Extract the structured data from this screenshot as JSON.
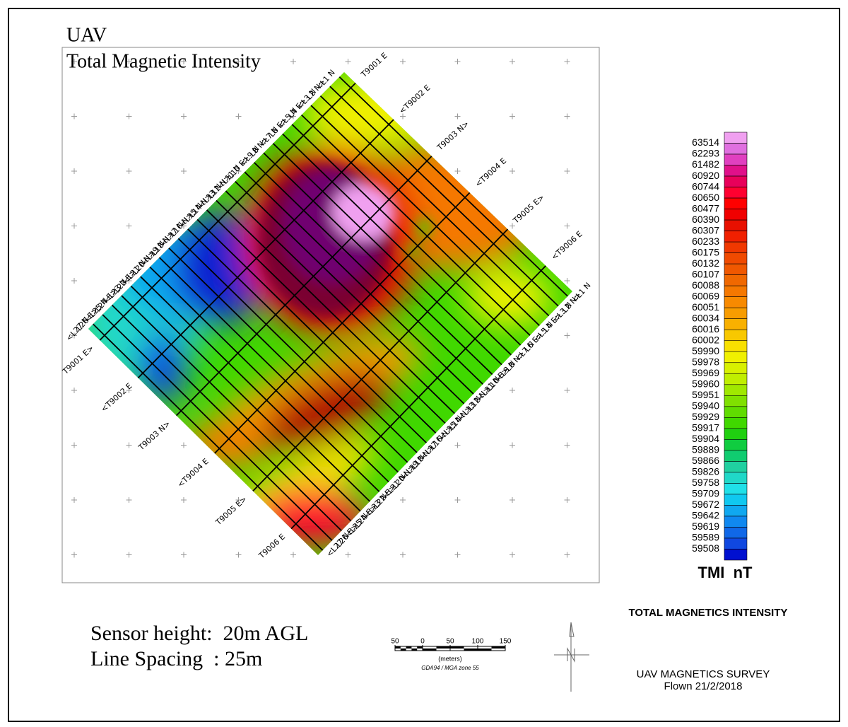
{
  "header": {
    "title_line1": "UAV",
    "title_line2": "Total Magnetic Intensity"
  },
  "line_labels": [
    "<L1 N",
    "L2 N>",
    "<L3 N",
    "L4 E>",
    "<L5 N",
    "L6 E>",
    "<L7 N",
    "L8 N>",
    "<L9 N",
    "L10 E>",
    "<L11 N",
    "L12 N>",
    "<L13 N",
    "L14 N>",
    "<L15 N",
    "L16 N>",
    "<L17 N",
    "L18 N>",
    "<L19 N",
    "L20 N>",
    "<L21 N",
    "L22 E>",
    "<L23 N",
    "L24 E>",
    "<L25 N",
    "L26 E>",
    "<L27 N"
  ],
  "tie_labels_ne": [
    "T9001 E",
    "<T9002 E",
    "T9003 N>",
    "<T9004 E",
    "T9005 E>",
    "<T9006 E"
  ],
  "tie_labels_sw": [
    "T9001 E>",
    "<T9002 E",
    "T9003 N>",
    "<T9004 E",
    "T9005 E>",
    "T9006 E"
  ],
  "legend": {
    "title": "TMI  nT",
    "labels": [
      63514,
      62293,
      61482,
      60920,
      60744,
      60650,
      60477,
      60390,
      60307,
      60233,
      60175,
      60132,
      60107,
      60088,
      60069,
      60051,
      60034,
      60016,
      60002,
      59990,
      59978,
      59969,
      59960,
      59951,
      59940,
      59929,
      59917,
      59904,
      59889,
      59866,
      59826,
      59758,
      59709,
      59672,
      59642,
      59619,
      59589,
      59508
    ],
    "colors": [
      "#f0a0f0",
      "#e070e0",
      "#e040c0",
      "#e0108a",
      "#e8005a",
      "#ff0030",
      "#ff0000",
      "#f00000",
      "#e81000",
      "#f02000",
      "#f03800",
      "#f04a00",
      "#f05800",
      "#f06800",
      "#f57800",
      "#f88a00",
      "#f89c00",
      "#f8b000",
      "#f8c800",
      "#f8e000",
      "#f0f000",
      "#d8f000",
      "#c0ee00",
      "#a0e800",
      "#80e000",
      "#60dc00",
      "#40d800",
      "#20d010",
      "#10cc40",
      "#10cc70",
      "#20d0a0",
      "#20d8c8",
      "#20e0e8",
      "#10c8f0",
      "#10a8f0",
      "#1088f0",
      "#1068e8",
      "#1048e0",
      "#0010d0"
    ]
  },
  "notes": {
    "sensor_height": "Sensor height:  20m AGL",
    "line_spacing": "Line Spacing  : 25m"
  },
  "scale_bar": {
    "ticks": [
      {
        "value": -50,
        "label": "50"
      },
      0,
      50,
      100,
      150
    ],
    "units": "(meters)",
    "projection": "GDA94 / MGA zone 55"
  },
  "footer": {
    "heading": "TOTAL MAGNETICS INTENSITY",
    "survey": "UAV MAGNETICS SURVEY",
    "flown": "Flown 21/2/2018"
  }
}
